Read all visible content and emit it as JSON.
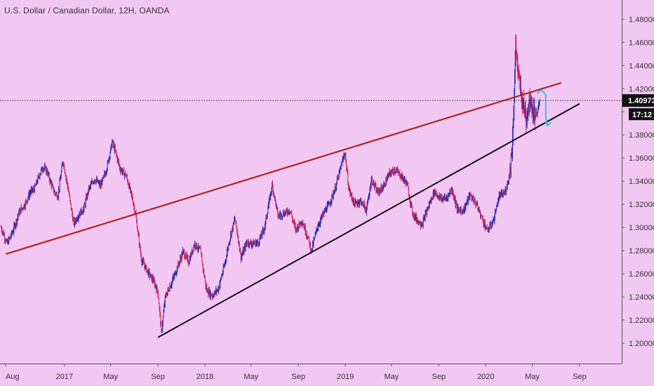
{
  "chart_title": "U.S. Dollar / Canadian Dollar, 12H, OANDA",
  "colors": {
    "background": "#f2c8f2",
    "candle_up": "#2a2aa8",
    "candle_down": "#c4245a",
    "resistance_line": "#b22222",
    "support_line": "#111111",
    "projection": "#33b7e6",
    "badge": "#111111"
  },
  "chart_data": {
    "type": "line",
    "title": "U.S. Dollar / Canadian Dollar, 12H, OANDA",
    "xlabel": "",
    "ylabel": "",
    "ylim": [
      1.185,
      1.495
    ],
    "y_ticks": [
      "1.48000",
      "1.46000",
      "1.44000",
      "1.42000",
      "1.40000",
      "1.38000",
      "1.36000",
      "1.34000",
      "1.32000",
      "1.30000",
      "1.28000",
      "1.26000",
      "1.24000",
      "1.22000",
      "1.20000"
    ],
    "x_ticks": [
      "Aug",
      "2017",
      "May",
      "Sep",
      "2018",
      "May",
      "Sep",
      "2019",
      "May",
      "Sep",
      "2020",
      "May",
      "Sep"
    ],
    "x_tick_dates": [
      "2016-08-01",
      "2017-01-01",
      "2017-05-01",
      "2017-09-01",
      "2018-01-01",
      "2018-05-01",
      "2018-09-01",
      "2019-01-01",
      "2019-05-01",
      "2019-09-01",
      "2020-01-01",
      "2020-05-01",
      "2020-09-01"
    ],
    "last_price": "1.40973",
    "countdown": "17:12",
    "grid": false,
    "series": [
      {
        "type": "candlestick-approx",
        "points": [
          [
            "2016-07-20",
            1.3
          ],
          [
            "2016-08-05",
            1.286
          ],
          [
            "2016-08-20",
            1.297
          ],
          [
            "2016-09-05",
            1.313
          ],
          [
            "2016-09-20",
            1.32
          ],
          [
            "2016-10-05",
            1.331
          ],
          [
            "2016-10-15",
            1.333
          ],
          [
            "2016-10-25",
            1.343
          ],
          [
            "2016-11-05",
            1.352
          ],
          [
            "2016-11-15",
            1.35
          ],
          [
            "2016-11-25",
            1.34
          ],
          [
            "2016-12-05",
            1.331
          ],
          [
            "2016-12-15",
            1.327
          ],
          [
            "2016-12-28",
            1.358
          ],
          [
            "2017-01-10",
            1.334
          ],
          [
            "2017-01-25",
            1.303
          ],
          [
            "2017-02-05",
            1.31
          ],
          [
            "2017-02-20",
            1.316
          ],
          [
            "2017-03-05",
            1.333
          ],
          [
            "2017-03-20",
            1.342
          ],
          [
            "2017-04-05",
            1.336
          ],
          [
            "2017-04-20",
            1.35
          ],
          [
            "2017-05-05",
            1.374
          ],
          [
            "2017-05-15",
            1.364
          ],
          [
            "2017-05-25",
            1.351
          ],
          [
            "2017-06-10",
            1.345
          ],
          [
            "2017-06-25",
            1.327
          ],
          [
            "2017-07-05",
            1.311
          ],
          [
            "2017-07-20",
            1.272
          ],
          [
            "2017-08-05",
            1.262
          ],
          [
            "2017-08-20",
            1.254
          ],
          [
            "2017-09-01",
            1.244
          ],
          [
            "2017-09-10",
            1.209
          ],
          [
            "2017-09-20",
            1.24
          ],
          [
            "2017-10-05",
            1.251
          ],
          [
            "2017-10-20",
            1.264
          ],
          [
            "2017-11-05",
            1.279
          ],
          [
            "2017-11-20",
            1.27
          ],
          [
            "2017-12-05",
            1.286
          ],
          [
            "2017-12-20",
            1.28
          ],
          [
            "2018-01-05",
            1.246
          ],
          [
            "2018-01-20",
            1.241
          ],
          [
            "2018-02-05",
            1.247
          ],
          [
            "2018-02-20",
            1.266
          ],
          [
            "2018-03-05",
            1.288
          ],
          [
            "2018-03-20",
            1.308
          ],
          [
            "2018-04-05",
            1.274
          ],
          [
            "2018-04-20",
            1.287
          ],
          [
            "2018-05-05",
            1.286
          ],
          [
            "2018-05-20",
            1.287
          ],
          [
            "2018-06-05",
            1.3
          ],
          [
            "2018-06-25",
            1.337
          ],
          [
            "2018-07-10",
            1.31
          ],
          [
            "2018-07-25",
            1.312
          ],
          [
            "2018-08-10",
            1.315
          ],
          [
            "2018-08-25",
            1.298
          ],
          [
            "2018-09-10",
            1.306
          ],
          [
            "2018-09-25",
            1.292
          ],
          [
            "2018-10-05",
            1.28
          ],
          [
            "2018-10-20",
            1.3
          ],
          [
            "2018-11-05",
            1.312
          ],
          [
            "2018-11-20",
            1.32
          ],
          [
            "2018-12-05",
            1.333
          ],
          [
            "2018-12-31",
            1.365
          ],
          [
            "2019-01-10",
            1.333
          ],
          [
            "2019-01-25",
            1.32
          ],
          [
            "2019-02-10",
            1.323
          ],
          [
            "2019-02-25",
            1.315
          ],
          [
            "2019-03-10",
            1.342
          ],
          [
            "2019-03-25",
            1.33
          ],
          [
            "2019-04-10",
            1.335
          ],
          [
            "2019-04-25",
            1.346
          ],
          [
            "2019-05-10",
            1.35
          ],
          [
            "2019-05-25",
            1.345
          ],
          [
            "2019-06-10",
            1.338
          ],
          [
            "2019-06-25",
            1.312
          ],
          [
            "2019-07-10",
            1.305
          ],
          [
            "2019-07-20",
            1.303
          ],
          [
            "2019-08-05",
            1.318
          ],
          [
            "2019-08-20",
            1.331
          ],
          [
            "2019-09-05",
            1.325
          ],
          [
            "2019-09-20",
            1.325
          ],
          [
            "2019-10-05",
            1.333
          ],
          [
            "2019-10-20",
            1.315
          ],
          [
            "2019-11-05",
            1.315
          ],
          [
            "2019-11-20",
            1.328
          ],
          [
            "2019-12-05",
            1.322
          ],
          [
            "2019-12-20",
            1.31
          ],
          [
            "2020-01-05",
            1.297
          ],
          [
            "2020-01-20",
            1.305
          ],
          [
            "2020-02-05",
            1.327
          ],
          [
            "2020-02-20",
            1.33
          ],
          [
            "2020-03-01",
            1.343
          ],
          [
            "2020-03-10",
            1.37
          ],
          [
            "2020-03-19",
            1.458
          ],
          [
            "2020-03-26",
            1.43
          ],
          [
            "2020-04-05",
            1.41
          ],
          [
            "2020-04-15",
            1.395
          ],
          [
            "2020-04-25",
            1.413
          ],
          [
            "2020-05-05",
            1.398
          ],
          [
            "2020-05-15",
            1.4
          ],
          [
            "2020-05-20",
            1.409
          ]
        ]
      },
      {
        "name": "",
        "type": "trendline",
        "color": "resistance",
        "points": [
          [
            "2016-08-01",
            1.277
          ],
          [
            "2020-07-15",
            1.425
          ]
        ]
      },
      {
        "name": "",
        "type": "trendline",
        "color": "support",
        "points": [
          [
            "2017-09-01",
            1.205
          ],
          [
            "2020-09-01",
            1.407
          ]
        ]
      },
      {
        "name": "",
        "type": "projection",
        "points": [
          [
            "2020-05-25",
            1.418
          ],
          [
            "2020-06-05",
            1.395
          ],
          [
            "2020-06-10",
            1.388
          ]
        ]
      }
    ]
  }
}
